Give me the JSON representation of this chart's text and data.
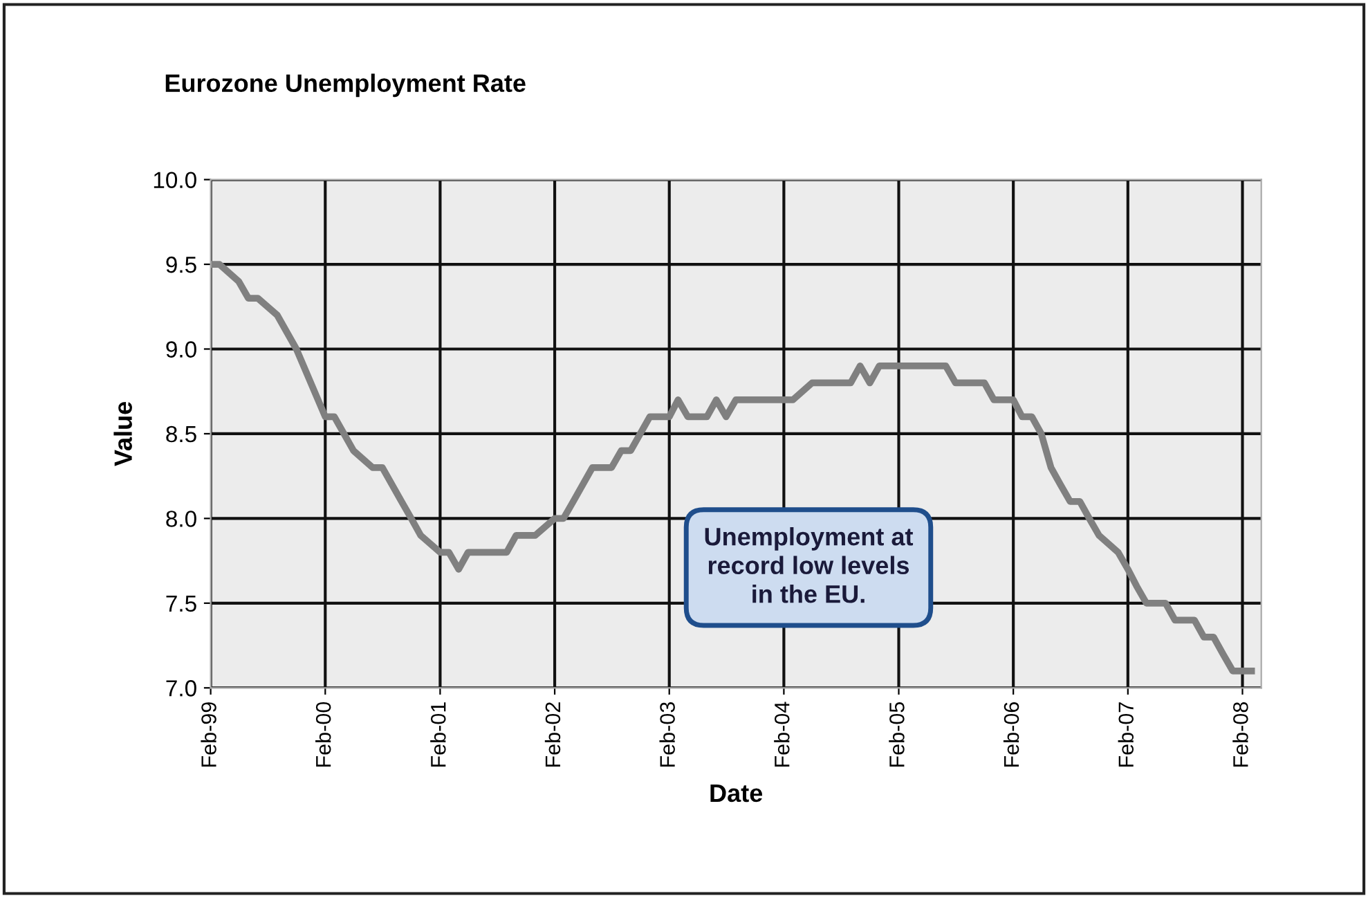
{
  "chart_data": {
    "type": "line",
    "title": "Eurozone Unemployment Rate",
    "xlabel": "Date",
    "ylabel": "Value",
    "x": [
      "1999-02",
      "1999-03",
      "1999-05",
      "1999-06",
      "1999-07",
      "1999-09",
      "1999-11",
      "2000-02",
      "2000-03",
      "2000-05",
      "2000-07",
      "2000-08",
      "2000-10",
      "2000-11",
      "2000-12",
      "2001-02",
      "2001-03",
      "2001-04",
      "2001-05",
      "2001-09",
      "2001-10",
      "2001-12",
      "2002-02",
      "2002-03",
      "2002-04",
      "2002-06",
      "2002-08",
      "2002-09",
      "2002-10",
      "2002-12",
      "2003-02",
      "2003-03",
      "2003-04",
      "2003-06",
      "2003-07",
      "2003-08",
      "2003-09",
      "2004-03",
      "2004-05",
      "2004-09",
      "2004-10",
      "2004-11",
      "2004-12",
      "2005-07",
      "2005-08",
      "2005-11",
      "2005-12",
      "2006-02",
      "2006-03",
      "2006-04",
      "2006-05",
      "2006-06",
      "2006-07",
      "2006-08",
      "2006-09",
      "2006-10",
      "2006-11",
      "2007-01",
      "2007-02",
      "2007-03",
      "2007-04",
      "2007-06",
      "2007-07",
      "2007-09",
      "2007-10",
      "2007-11",
      "2007-12",
      "2008-01",
      "2008-02",
      "2008-03"
    ],
    "series": [
      {
        "color": "#808080",
        "values": [
          9.5,
          9.5,
          9.4,
          9.3,
          9.3,
          9.2,
          9.0,
          8.6,
          8.6,
          8.4,
          8.3,
          8.3,
          8.1,
          8.0,
          7.9,
          7.8,
          7.8,
          7.7,
          7.8,
          7.8,
          7.9,
          7.9,
          8.0,
          8.0,
          8.1,
          8.3,
          8.3,
          8.4,
          8.4,
          8.6,
          8.6,
          8.7,
          8.6,
          8.6,
          8.7,
          8.6,
          8.7,
          8.7,
          8.8,
          8.8,
          8.9,
          8.8,
          8.9,
          8.9,
          8.8,
          8.8,
          8.7,
          8.7,
          8.6,
          8.6,
          8.5,
          8.3,
          8.2,
          8.1,
          8.1,
          8.0,
          7.9,
          7.8,
          7.7,
          7.6,
          7.5,
          7.5,
          7.4,
          7.4,
          7.3,
          7.3,
          7.2,
          7.1,
          7.1,
          7.1
        ]
      }
    ],
    "xlim": [
      "1999-02",
      "2008-04"
    ],
    "xticks": [
      {
        "value": "1999-02",
        "label": "Feb-99"
      },
      {
        "value": "2000-02",
        "label": "Feb-00"
      },
      {
        "value": "2001-02",
        "label": "Feb-01"
      },
      {
        "value": "2002-02",
        "label": "Feb-02"
      },
      {
        "value": "2003-02",
        "label": "Feb-03"
      },
      {
        "value": "2004-02",
        "label": "Feb-04"
      },
      {
        "value": "2005-02",
        "label": "Feb-05"
      },
      {
        "value": "2006-02",
        "label": "Feb-06"
      },
      {
        "value": "2007-02",
        "label": "Feb-07"
      },
      {
        "value": "2008-02",
        "label": "Feb-08"
      }
    ],
    "ylim": [
      7.0,
      10.0
    ],
    "yticks": [
      {
        "value": 7.0,
        "label": "7.0"
      },
      {
        "value": 7.5,
        "label": "7.5"
      },
      {
        "value": 8.0,
        "label": "8.0"
      },
      {
        "value": 8.5,
        "label": "8.5"
      },
      {
        "value": 9.0,
        "label": "9.0"
      },
      {
        "value": 9.5,
        "label": "9.5"
      },
      {
        "value": 10.0,
        "label": "10.0"
      }
    ],
    "grid": true,
    "marker": "none",
    "line_style": "solid",
    "annotations": [
      "Unemployment at\nrecord low levels\nin the EU."
    ]
  }
}
